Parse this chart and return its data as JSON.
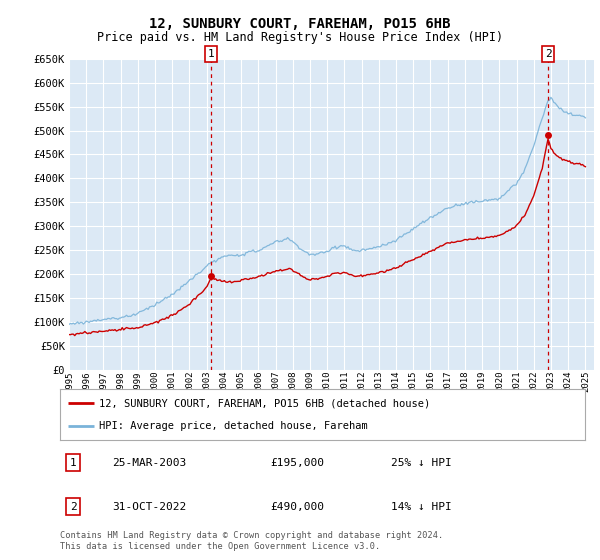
{
  "title": "12, SUNBURY COURT, FAREHAM, PO15 6HB",
  "subtitle": "Price paid vs. HM Land Registry's House Price Index (HPI)",
  "ytick_values": [
    0,
    50000,
    100000,
    150000,
    200000,
    250000,
    300000,
    350000,
    400000,
    450000,
    500000,
    550000,
    600000,
    650000
  ],
  "ylim": [
    0,
    650000
  ],
  "xlim_start": 1995.0,
  "xlim_end": 2025.5,
  "sale1_date_num": 2003.23,
  "sale1_price": 195000,
  "sale1_label": "1",
  "sale1_date_str": "25-MAR-2003",
  "sale1_pct": "25% ↓ HPI",
  "sale2_date_num": 2022.83,
  "sale2_price": 490000,
  "sale2_label": "2",
  "sale2_date_str": "31-OCT-2022",
  "sale2_pct": "14% ↓ HPI",
  "legend_line1": "12, SUNBURY COURT, FAREHAM, PO15 6HB (detached house)",
  "legend_line2": "HPI: Average price, detached house, Fareham",
  "footer1": "Contains HM Land Registry data © Crown copyright and database right 2024.",
  "footer2": "This data is licensed under the Open Government Licence v3.0.",
  "red_color": "#cc0000",
  "blue_color": "#7ab3d9",
  "bg_color": "#dce9f5",
  "grid_color": "#ffffff",
  "dashed_color": "#cc0000"
}
